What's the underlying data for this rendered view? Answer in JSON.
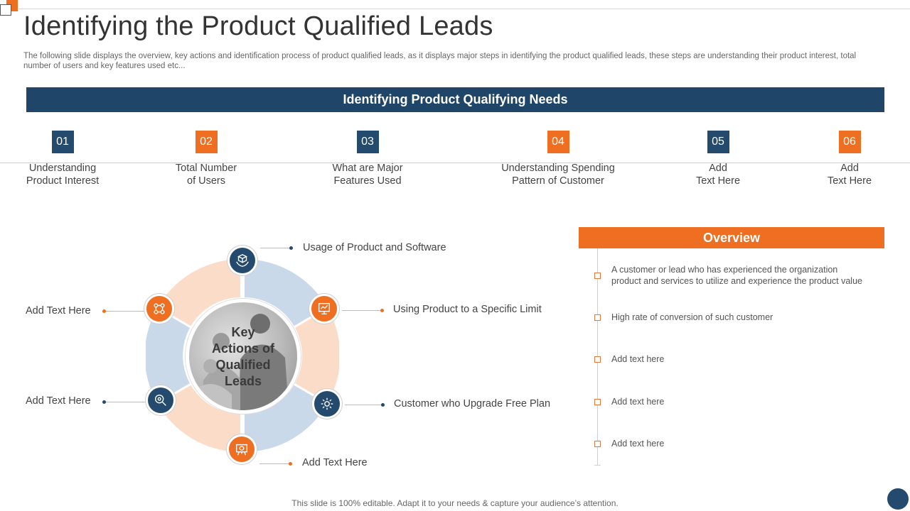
{
  "title": "Identifying the Product Qualified Leads",
  "subtitle": "The following slide displays the overview,  key actions and identification process of product qualified leads, as it displays major steps in identifying the product qualified leads, these steps are understanding their product interest, total number of users and key features used etc...",
  "banner": "Identifying Product Qualifying Needs",
  "steps": [
    {
      "num": "01",
      "line1": "Understanding",
      "line2": "Product Interest"
    },
    {
      "num": "02",
      "line1": "Total Number",
      "line2": "of Users"
    },
    {
      "num": "03",
      "line1": "What are Major",
      "line2": "Features Used"
    },
    {
      "num": "04",
      "line1": "Understanding Spending",
      "line2": "Pattern of Customer"
    },
    {
      "num": "05",
      "line1": "Add",
      "line2": "Text Here"
    },
    {
      "num": "06",
      "line1": "Add",
      "line2": "Text Here"
    }
  ],
  "diagram": {
    "center_lines": [
      "Key",
      "Actions of",
      "Qualified",
      "Leads"
    ],
    "callouts": {
      "top": "Usage of Product and Software",
      "right_upper": "Using Product to a Specific Limit",
      "right_lower": "Customer who Upgrade Free Plan",
      "bottom": "Add Text Here",
      "left_lower": "Add Text Here",
      "left_upper": "Add Text Here"
    },
    "icons": {
      "top": "hands-box-icon",
      "right_upper": "presentation-board-icon",
      "right_lower": "gear-icon",
      "bottom": "easel-chart-icon",
      "left_lower": "magnifier-gear-icon",
      "left_upper": "network-people-icon"
    }
  },
  "overview": {
    "title": "Overview",
    "items": [
      {
        "line1": "A customer or lead who has experienced the organization",
        "line2": "product and services  to utilize and experience the product value"
      },
      {
        "line1": "High rate of conversion  of such customer",
        "line2": ""
      },
      {
        "line1": "Add text here",
        "line2": ""
      },
      {
        "line1": "Add text here",
        "line2": ""
      },
      {
        "line1": "Add text here",
        "line2": ""
      }
    ]
  },
  "footer": "This slide is 100% editable. Adapt it to your needs & capture your audience’s attention.",
  "colors": {
    "navy": "#1f4568",
    "orange": "#ee6e22",
    "light_blue": "#c9d9ea",
    "light_peach": "#fbdcc9"
  }
}
